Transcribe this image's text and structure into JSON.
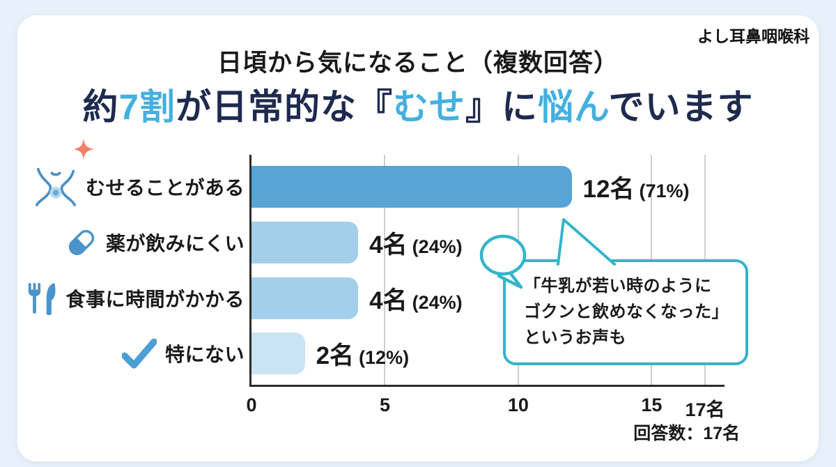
{
  "page": {
    "clinic_name": "よし耳鼻咽喉科"
  },
  "header": {
    "title": "日頃から気になること（複数回答）",
    "subtitle_segments": [
      {
        "text": "約",
        "highlight": false
      },
      {
        "text": "7割",
        "highlight": true
      },
      {
        "text": "が日常的な『",
        "highlight": false
      },
      {
        "text": "むせ",
        "highlight": true
      },
      {
        "text": "』に",
        "highlight": false
      },
      {
        "text": "悩ん",
        "highlight": true
      },
      {
        "text": "でいます",
        "highlight": false
      }
    ],
    "base_color": "#1e2a4e",
    "highlight_color": "#44b0df"
  },
  "chart_data": {
    "type": "bar",
    "orientation": "horizontal",
    "title": "日頃から気になること（複数回答）",
    "categories": [
      "むせることがある",
      "薬が飲みにくい",
      "食事に時間がかかる",
      "特にない"
    ],
    "values": [
      12,
      4,
      4,
      2
    ],
    "value_labels": [
      {
        "count": "12名",
        "pct": "(71%)"
      },
      {
        "count": "4名",
        "pct": "(24%)"
      },
      {
        "count": "4名",
        "pct": "(24%)"
      },
      {
        "count": "2名",
        "pct": "(12%)"
      }
    ],
    "bar_colors": [
      "#58a4d5",
      "#a3cfea",
      "#a3cfea",
      "#c9e4f4"
    ],
    "x_ticks": [
      0,
      5,
      10,
      15,
      17
    ],
    "x_tick_labels": [
      "0",
      "5",
      "10",
      "15",
      "17名"
    ],
    "x_max": 17,
    "grid": true,
    "legend": "none",
    "icons": [
      "throat-icon",
      "pill-icon",
      "utensils-icon",
      "check-icon"
    ],
    "footnote": "回答数：17名"
  },
  "bubble": {
    "text": "「牛乳が若い時のように\nゴクンと飲めなくなった」\nというお声も",
    "border_color": "#35b4cb"
  }
}
